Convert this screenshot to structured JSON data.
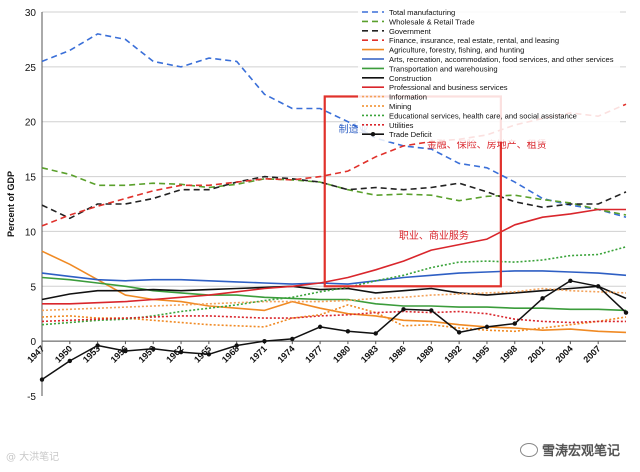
{
  "chart_data": {
    "type": "line",
    "ylabel": "Percent of GDP",
    "ylim": [
      -5,
      30
    ],
    "yticks": [
      "-5",
      "0",
      "5",
      "10",
      "15",
      "20",
      "25",
      "30"
    ],
    "xlim": [
      1947,
      2010
    ],
    "xtick_labels": [
      "1947",
      "1950",
      "1953",
      "1956",
      "1959",
      "1962",
      "1965",
      "1968",
      "1971",
      "1974",
      "1977",
      "1980",
      "1983",
      "1986",
      "1989",
      "1992",
      "1995",
      "1998",
      "2001",
      "2004",
      "2007"
    ],
    "x": [
      1947,
      1950,
      1953,
      1956,
      1959,
      1962,
      1965,
      1968,
      1971,
      1974,
      1977,
      1980,
      1983,
      1986,
      1989,
      1992,
      1995,
      1998,
      2001,
      2004,
      2007,
      2010
    ],
    "series": [
      {
        "name": "Total manufacturing",
        "color": "#3a6fd8",
        "dash": "6,4",
        "values": [
          25.5,
          26.5,
          28.0,
          27.5,
          25.5,
          25.0,
          25.8,
          25.5,
          22.5,
          21.2,
          21.2,
          20.0,
          18.5,
          17.8,
          17.5,
          16.2,
          15.8,
          14.5,
          13.0,
          12.4,
          12.0,
          11.3
        ]
      },
      {
        "name": "Wholesale & Retail Trade",
        "color": "#5aa02c",
        "dash": "6,4",
        "values": [
          15.8,
          15.2,
          14.2,
          14.2,
          14.4,
          14.3,
          14.0,
          14.3,
          14.8,
          14.7,
          14.5,
          13.8,
          13.3,
          13.4,
          13.3,
          12.8,
          13.2,
          13.3,
          12.9,
          12.6,
          12.0,
          11.5
        ]
      },
      {
        "name": "Government",
        "color": "#222222",
        "dash": "6,4",
        "values": [
          12.4,
          11.2,
          12.5,
          12.5,
          13.0,
          13.8,
          13.8,
          14.5,
          15.0,
          14.8,
          14.5,
          13.8,
          14.0,
          13.8,
          14.0,
          14.4,
          13.6,
          12.7,
          12.2,
          12.5,
          12.5,
          13.6
        ]
      },
      {
        "name": "Finance, insurance, real estate, rental, and leasing",
        "color": "#e0312b",
        "dash": "6,4",
        "values": [
          10.5,
          11.5,
          12.3,
          13.0,
          13.7,
          14.2,
          14.2,
          14.5,
          14.8,
          14.7,
          15.0,
          15.5,
          16.8,
          17.8,
          18.2,
          18.4,
          18.8,
          19.7,
          20.3,
          20.8,
          20.5,
          21.6
        ]
      },
      {
        "name": "Agriculture, forestry, fishing, and hunting",
        "color": "#f08a24",
        "dash": "",
        "values": [
          8.2,
          7.0,
          5.6,
          4.2,
          3.8,
          3.6,
          3.2,
          3.0,
          2.8,
          3.6,
          3.0,
          2.5,
          2.3,
          1.9,
          1.8,
          1.5,
          1.3,
          1.2,
          1.0,
          1.1,
          0.9,
          0.8
        ]
      },
      {
        "name": "Arts, recreation, accommodation, food services, and other services",
        "color": "#2e5fc4",
        "dash": "",
        "values": [
          6.2,
          5.9,
          5.6,
          5.5,
          5.6,
          5.6,
          5.5,
          5.4,
          5.3,
          5.2,
          5.3,
          5.2,
          5.5,
          5.8,
          6.0,
          6.2,
          6.3,
          6.4,
          6.4,
          6.3,
          6.2,
          6.0
        ]
      },
      {
        "name": "Transportation and warehousing",
        "color": "#3b9c3b",
        "dash": "",
        "values": [
          5.8,
          5.6,
          5.3,
          5.0,
          4.6,
          4.4,
          4.2,
          4.2,
          4.0,
          3.9,
          3.8,
          3.8,
          3.4,
          3.2,
          3.2,
          3.1,
          3.1,
          3.0,
          3.0,
          2.9,
          2.9,
          2.8
        ]
      },
      {
        "name": "Construction",
        "color": "#111111",
        "dash": "",
        "values": [
          3.8,
          4.3,
          4.6,
          4.6,
          4.7,
          4.6,
          4.7,
          4.8,
          4.9,
          5.0,
          4.7,
          4.8,
          4.4,
          4.6,
          4.8,
          4.4,
          4.2,
          4.4,
          4.6,
          4.8,
          5.0,
          3.9
        ]
      },
      {
        "name": "Professional and business services",
        "color": "#d9262c",
        "dash": "",
        "values": [
          3.4,
          3.4,
          3.5,
          3.6,
          3.8,
          4.0,
          4.2,
          4.5,
          4.8,
          5.0,
          5.3,
          5.8,
          6.5,
          7.3,
          8.3,
          8.8,
          9.3,
          10.6,
          11.3,
          11.6,
          12.0,
          12.0
        ]
      },
      {
        "name": "Information",
        "color": "#f3a25a",
        "dash": "2,2",
        "values": [
          2.8,
          2.9,
          3.0,
          3.1,
          3.2,
          3.3,
          3.4,
          3.5,
          3.6,
          3.6,
          3.6,
          3.7,
          3.9,
          4.0,
          4.2,
          4.3,
          4.4,
          4.5,
          4.8,
          4.6,
          4.5,
          4.4
        ]
      },
      {
        "name": "Mining",
        "color": "#f08a24",
        "dash": "2,2",
        "values": [
          2.2,
          2.3,
          2.1,
          2.1,
          1.9,
          1.7,
          1.5,
          1.4,
          1.3,
          2.1,
          2.4,
          3.3,
          2.6,
          1.4,
          1.5,
          1.2,
          1.0,
          0.9,
          1.2,
          1.5,
          1.8,
          2.2
        ]
      },
      {
        "name": "Educational services, health care, and social assistance",
        "color": "#3aa33a",
        "dash": "2,2",
        "values": [
          1.5,
          1.7,
          1.9,
          2.0,
          2.3,
          2.7,
          3.0,
          3.3,
          3.7,
          4.0,
          4.5,
          4.9,
          5.5,
          6.0,
          6.7,
          7.2,
          7.3,
          7.2,
          7.4,
          7.8,
          7.9,
          8.6
        ]
      },
      {
        "name": "Utilities",
        "color": "#d9262c",
        "dash": "2,2",
        "values": [
          1.8,
          1.9,
          2.0,
          2.1,
          2.2,
          2.3,
          2.3,
          2.2,
          2.1,
          2.1,
          2.3,
          2.4,
          2.6,
          2.7,
          2.6,
          2.7,
          2.5,
          2.0,
          1.8,
          1.7,
          1.8,
          1.8
        ]
      },
      {
        "name": "Trade Deficit",
        "color": "#111111",
        "dash": "",
        "marker": true,
        "values": [
          -3.5,
          -1.8,
          -0.4,
          -0.9,
          -0.7,
          -1.0,
          -1.2,
          -0.4,
          0.0,
          0.2,
          1.3,
          0.9,
          0.7,
          2.9,
          2.8,
          0.8,
          1.3,
          1.6,
          3.9,
          5.5,
          5.0,
          2.6
        ]
      }
    ],
    "annotations": [
      {
        "text": "制造业",
        "x": 1979,
        "y": 19.0,
        "color": "#2e5fc4"
      },
      {
        "text": "金融、保险、房地产、租赁",
        "x": 1988.5,
        "y": 17.6,
        "color": "#d9262c"
      },
      {
        "text": "职业、商业服务",
        "x": 1985.5,
        "y": 9.3,
        "color": "#d9262c"
      }
    ],
    "highlight_box": {
      "x0": 1977.5,
      "x1": 1996.5,
      "y0": 5.0,
      "y1": 22.3,
      "color": "#e0312b"
    }
  },
  "watermarks": {
    "left": "@ 大洪笔记",
    "right": "雪涛宏观笔记"
  }
}
